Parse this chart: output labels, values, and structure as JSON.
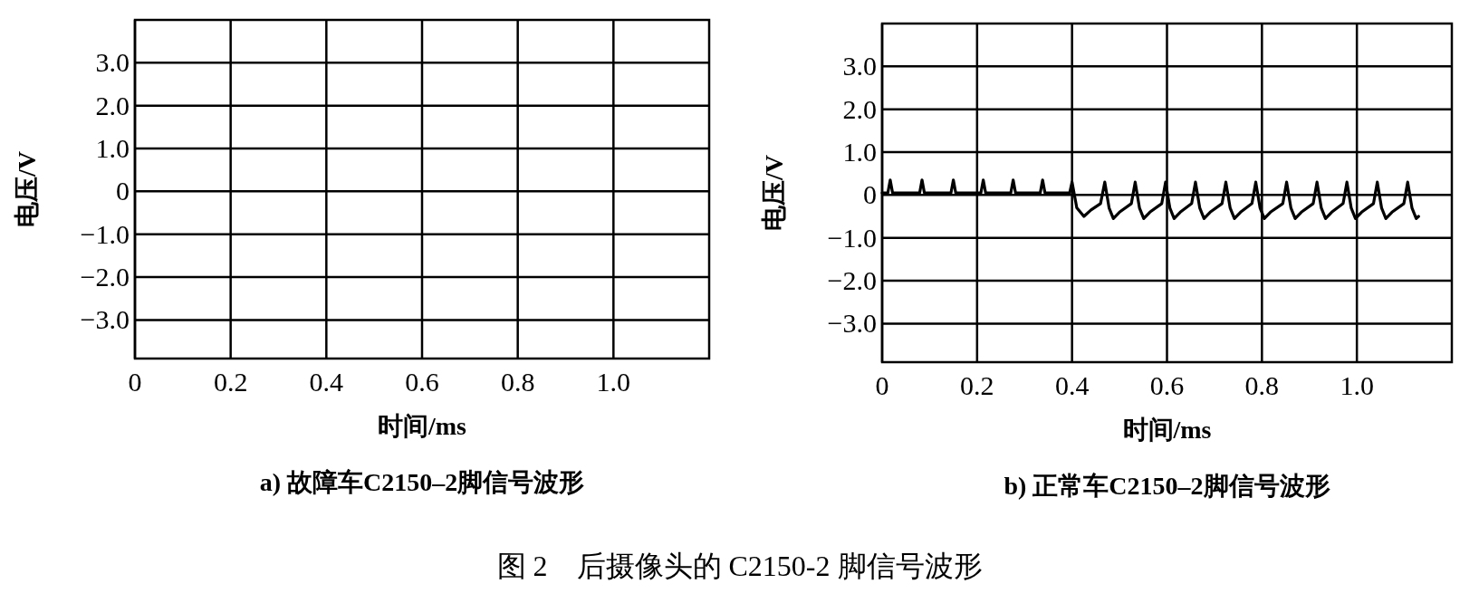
{
  "chart_data": [
    {
      "type": "line",
      "title": "a) 故障车C2150–2脚信号波形",
      "xlabel": "时间/ms",
      "ylabel": "电压/V",
      "xlim": [
        0,
        1.2
      ],
      "ylim": [
        -3.9,
        4.0
      ],
      "xticks": [
        0,
        0.2,
        0.4,
        0.6,
        0.8,
        {
          "value": 1,
          "label": "1.0"
        }
      ],
      "yticks": [
        {
          "value": -3,
          "label": "−3.0"
        },
        {
          "value": -2,
          "label": "−2.0"
        },
        {
          "value": -1,
          "label": "−1.0"
        },
        0,
        {
          "value": 1,
          "label": "1.0"
        },
        {
          "value": 2,
          "label": "2.0"
        },
        {
          "value": 3,
          "label": "3.0"
        }
      ],
      "grid": true,
      "annotations": [
        "图 2　后摄像头的 C2150-2 脚信号波形"
      ]
    },
    {
      "type": "line",
      "title": "b) 正常车C2150–2脚信号波形",
      "xlabel": "时间/ms",
      "ylabel": "电压/V",
      "xlim": [
        0,
        1.2
      ],
      "ylim": [
        -3.9,
        4.0
      ],
      "xticks": [
        0,
        0.2,
        0.4,
        0.6,
        0.8,
        {
          "value": 1,
          "label": "1.0"
        }
      ],
      "yticks": [
        {
          "value": -3,
          "label": "−3.0"
        },
        {
          "value": -2,
          "label": "−2.0"
        },
        {
          "value": -1,
          "label": "−1.0"
        },
        0,
        {
          "value": 1,
          "label": "1.0"
        },
        {
          "value": 2,
          "label": "2.0"
        },
        {
          "value": 3,
          "label": "3.0"
        }
      ],
      "grid": true,
      "series": [
        {
          "color": "#000000",
          "x": [
            0,
            0.012,
            0.017,
            0.022,
            0.079,
            0.084,
            0.089,
            0.145,
            0.15,
            0.155,
            0.208,
            0.213,
            0.218,
            0.271,
            0.276,
            0.281,
            0.333,
            0.338,
            0.343,
            0.395,
            0.4,
            0.41,
            0.425,
            0.44,
            0.46,
            0.469,
            0.478,
            0.487,
            0.5,
            0.525,
            0.533,
            0.542,
            0.551,
            0.564,
            0.589,
            0.597,
            0.606,
            0.615,
            0.628,
            0.652,
            0.66,
            0.669,
            0.678,
            0.691,
            0.716,
            0.724,
            0.733,
            0.742,
            0.755,
            0.779,
            0.787,
            0.796,
            0.805,
            0.818,
            0.844,
            0.852,
            0.861,
            0.87,
            0.883,
            0.908,
            0.916,
            0.925,
            0.934,
            0.947,
            0.971,
            0.979,
            0.988,
            0.997,
            1.01,
            1.035,
            1.043,
            1.052,
            1.061,
            1.074,
            1.099,
            1.107,
            1.116,
            1.125,
            1.13
          ],
          "values": [
            0.05,
            0.05,
            0.35,
            0.05,
            0.05,
            0.35,
            0.05,
            0.05,
            0.35,
            0.05,
            0.05,
            0.35,
            0.05,
            0.05,
            0.35,
            0.05,
            0.05,
            0.35,
            0.05,
            0.05,
            0.3,
            -0.3,
            -0.5,
            -0.35,
            -0.2,
            0.3,
            -0.3,
            -0.55,
            -0.4,
            -0.2,
            0.3,
            -0.3,
            -0.55,
            -0.4,
            -0.2,
            0.3,
            -0.3,
            -0.55,
            -0.4,
            -0.2,
            0.3,
            -0.3,
            -0.55,
            -0.4,
            -0.2,
            0.3,
            -0.3,
            -0.55,
            -0.4,
            -0.2,
            0.3,
            -0.3,
            -0.55,
            -0.4,
            -0.2,
            0.3,
            -0.3,
            -0.55,
            -0.4,
            -0.2,
            0.3,
            -0.3,
            -0.55,
            -0.4,
            -0.2,
            0.3,
            -0.3,
            -0.55,
            -0.4,
            -0.2,
            0.3,
            -0.3,
            -0.55,
            -0.4,
            -0.2,
            0.3,
            -0.3,
            -0.55,
            -0.5
          ]
        }
      ]
    }
  ]
}
